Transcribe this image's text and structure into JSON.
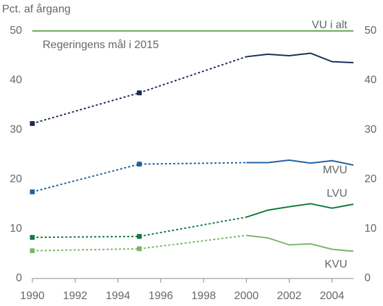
{
  "chart_data": {
    "type": "line",
    "ylabel": "Pct. af årgang",
    "x": [
      1990,
      1995,
      2000,
      2001,
      2002,
      2003,
      2004,
      2005
    ],
    "xlim": [
      1990,
      2005
    ],
    "xticks": [
      1990,
      1992,
      1994,
      1996,
      1998,
      2000,
      2002,
      2004
    ],
    "ylim": [
      0,
      50
    ],
    "yticks": [
      0,
      10,
      20,
      30,
      40,
      50
    ],
    "y2lim": [
      0,
      50
    ],
    "y2ticks": [
      0,
      10,
      20,
      30,
      40,
      50
    ],
    "dashed_until": 2000,
    "target": {
      "value": 50,
      "label": "Regeringens mål i 2015",
      "color": "#6aaa5a"
    },
    "series": [
      {
        "name": "VU i alt",
        "color": "#1a2a5a",
        "values": [
          31.3,
          37.5,
          44.8,
          45.3,
          45.0,
          45.5,
          43.8,
          43.6
        ]
      },
      {
        "name": "MVU",
        "color": "#1f5fa0",
        "values": [
          17.5,
          23.1,
          23.4,
          23.4,
          23.9,
          23.3,
          23.8,
          22.9
        ]
      },
      {
        "name": "LVU",
        "color": "#0e7a3e",
        "values": [
          8.3,
          8.5,
          12.4,
          13.8,
          14.5,
          15.1,
          14.2,
          15.0
        ]
      },
      {
        "name": "KVU",
        "color": "#7ab46a",
        "values": [
          5.6,
          6.0,
          8.7,
          8.2,
          6.8,
          7.0,
          5.9,
          5.5
        ]
      }
    ]
  }
}
